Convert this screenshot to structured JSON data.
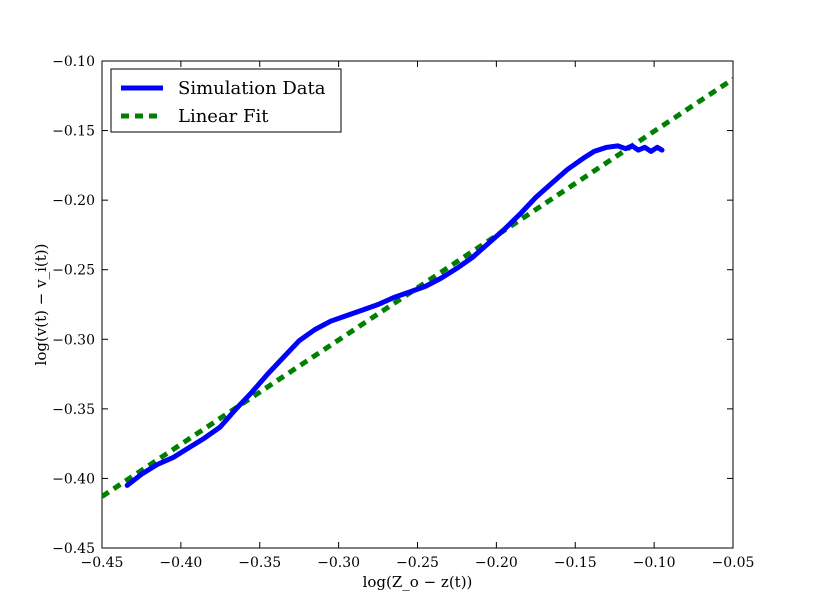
{
  "chart_data": {
    "type": "line",
    "xlabel": "log(Z_o − z(t))",
    "ylabel": "log(v(t) − v_i(t))",
    "xlim": [
      -0.45,
      -0.05
    ],
    "ylim": [
      -0.45,
      -0.1
    ],
    "xticks": [
      -0.45,
      -0.4,
      -0.35,
      -0.3,
      -0.25,
      -0.2,
      -0.15,
      -0.1,
      -0.05
    ],
    "yticks": [
      -0.45,
      -0.4,
      -0.35,
      -0.3,
      -0.25,
      -0.2,
      -0.15,
      -0.1
    ],
    "xtick_labels": [
      "−0.45",
      "−0.40",
      "−0.35",
      "−0.30",
      "−0.25",
      "−0.20",
      "−0.15",
      "−0.10",
      "−0.05"
    ],
    "ytick_labels": [
      "−0.45",
      "−0.40",
      "−0.35",
      "−0.30",
      "−0.25",
      "−0.20",
      "−0.15",
      "−0.10"
    ],
    "grid": false,
    "legend_position": "top-left",
    "series": [
      {
        "name": "Simulation Data",
        "color": "#0000ff",
        "style": "solid",
        "x": [
          -0.434,
          -0.425,
          -0.415,
          -0.405,
          -0.395,
          -0.385,
          -0.375,
          -0.365,
          -0.355,
          -0.345,
          -0.335,
          -0.325,
          -0.315,
          -0.305,
          -0.295,
          -0.285,
          -0.275,
          -0.265,
          -0.255,
          -0.245,
          -0.235,
          -0.225,
          -0.215,
          -0.205,
          -0.195,
          -0.185,
          -0.175,
          -0.165,
          -0.155,
          -0.145,
          -0.138,
          -0.13,
          -0.123,
          -0.118,
          -0.114,
          -0.11,
          -0.106,
          -0.102,
          -0.098,
          -0.095
        ],
        "y": [
          -0.405,
          -0.397,
          -0.39,
          -0.385,
          -0.378,
          -0.371,
          -0.363,
          -0.35,
          -0.338,
          -0.325,
          -0.313,
          -0.301,
          -0.293,
          -0.287,
          -0.283,
          -0.279,
          -0.275,
          -0.27,
          -0.266,
          -0.262,
          -0.256,
          -0.249,
          -0.241,
          -0.231,
          -0.221,
          -0.21,
          -0.198,
          -0.188,
          -0.178,
          -0.17,
          -0.165,
          -0.162,
          -0.161,
          -0.163,
          -0.161,
          -0.164,
          -0.162,
          -0.165,
          -0.162,
          -0.164
        ]
      },
      {
        "name": "Linear Fit",
        "color": "#008000",
        "style": "dashed",
        "x": [
          -0.45,
          -0.05
        ],
        "y": [
          -0.413,
          -0.113
        ]
      }
    ]
  }
}
